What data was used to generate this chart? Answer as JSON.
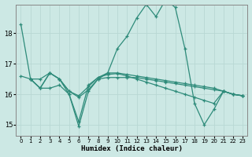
{
  "xlabel": "Humidex (Indice chaleur)",
  "bg_color": "#cce8e4",
  "grid_color": "#b8d8d4",
  "line_color": "#2e8b7a",
  "xlim": [
    -0.5,
    23.5
  ],
  "ylim": [
    14.65,
    18.95
  ],
  "yticks": [
    15,
    16,
    17,
    18
  ],
  "xticks": [
    0,
    1,
    2,
    3,
    4,
    5,
    6,
    7,
    8,
    9,
    10,
    11,
    12,
    13,
    14,
    15,
    16,
    17,
    18,
    19,
    20,
    21,
    22,
    23
  ],
  "line1_x": [
    0,
    1,
    2,
    3,
    4,
    5,
    6,
    7,
    8,
    9,
    10,
    11,
    12,
    13,
    14,
    15,
    16,
    17,
    18,
    19,
    20,
    21,
    22,
    23
  ],
  "line1_y": [
    18.3,
    16.5,
    16.5,
    16.7,
    16.5,
    16.0,
    14.95,
    16.1,
    16.5,
    16.7,
    17.5,
    17.9,
    18.5,
    18.95,
    18.55,
    19.1,
    18.85,
    17.5,
    15.7,
    15.0,
    15.5,
    16.1,
    16.0,
    15.95
  ],
  "line2_x": [
    0,
    1,
    2,
    3,
    4,
    5,
    6,
    7,
    8,
    9,
    10,
    11,
    12,
    13,
    14,
    15,
    16,
    17,
    18,
    19,
    20,
    21,
    22,
    23
  ],
  "line2_y": [
    16.6,
    16.5,
    16.2,
    16.7,
    16.5,
    16.1,
    15.9,
    16.15,
    16.5,
    16.55,
    16.55,
    16.55,
    16.55,
    16.5,
    16.45,
    16.4,
    16.35,
    16.3,
    16.25,
    16.2,
    16.15,
    16.1,
    16.0,
    15.95
  ],
  "line3_x": [
    1,
    2,
    3,
    4,
    5,
    6,
    7,
    8,
    9,
    10,
    11,
    12,
    13,
    14,
    15,
    16,
    17,
    18,
    19,
    20,
    21,
    22,
    23
  ],
  "line3_y": [
    16.5,
    16.2,
    16.2,
    16.3,
    16.0,
    15.1,
    16.3,
    16.55,
    16.7,
    16.7,
    16.65,
    16.6,
    16.55,
    16.5,
    16.45,
    16.4,
    16.35,
    16.3,
    16.25,
    16.2,
    16.1,
    16.0,
    15.95
  ],
  "line4_x": [
    1,
    2,
    3,
    4,
    5,
    6,
    7,
    8,
    9,
    10,
    11,
    12,
    13,
    14,
    15,
    16,
    17,
    18,
    19,
    20,
    21,
    22,
    23
  ],
  "line4_y": [
    16.5,
    16.2,
    16.7,
    16.5,
    16.1,
    15.95,
    16.25,
    16.55,
    16.65,
    16.68,
    16.6,
    16.5,
    16.4,
    16.3,
    16.2,
    16.1,
    16.0,
    15.9,
    15.8,
    15.7,
    16.1,
    16.0,
    15.95
  ]
}
